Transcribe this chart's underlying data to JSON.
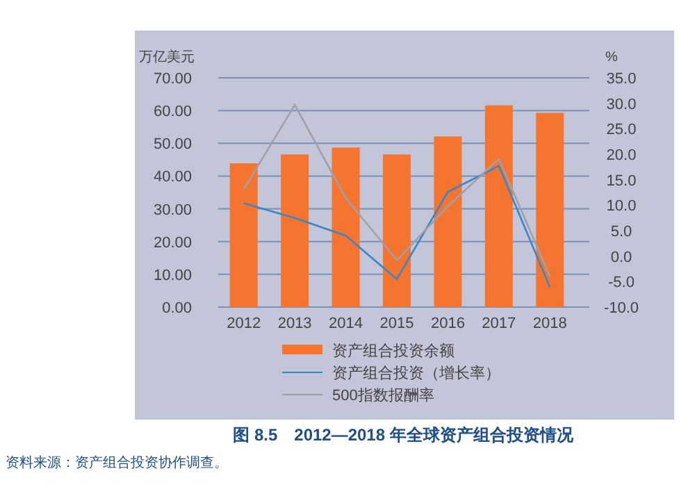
{
  "chart_data": {
    "type": "bar",
    "title": "图 8.5　2012—2018 年全球资产组合投资情况",
    "ylabel": "万亿美元",
    "y2label": "%",
    "annotations": [
      "资料来源：资产组合投资协作调查。"
    ],
    "categories": [
      "2012",
      "2013",
      "2014",
      "2015",
      "2016",
      "2017",
      "2018"
    ],
    "series": [
      {
        "name": "资产组合投资余额",
        "color": "#f47430",
        "values": [
          43.9,
          46.6,
          48.7,
          46.6,
          52.1,
          61.6,
          59.3
        ]
      },
      {
        "name": "资产组合投资（增长率）",
        "type": "line",
        "axis": "y2",
        "color": "#3b86c4",
        "values": [
          10.4,
          7.5,
          4,
          -4.5,
          12.6,
          17.7,
          -6.1
        ]
      },
      {
        "name": "500指数报酬率",
        "type": "line",
        "axis": "y2",
        "color": "#a0a0a8",
        "values": [
          13.1,
          29.7,
          11.4,
          -0.8,
          9.8,
          19.1,
          -4
        ]
      }
    ],
    "ylim": [
      0,
      70
    ],
    "yticks": [
      {
        "value": 0,
        "label": "0.00"
      },
      {
        "value": 10,
        "label": "10.00"
      },
      {
        "value": 20,
        "label": "20.00"
      },
      {
        "value": 30,
        "label": "30.00"
      },
      {
        "value": 40,
        "label": "40.00"
      },
      {
        "value": 50,
        "label": "50.00"
      },
      {
        "value": 60,
        "label": "60.00"
      },
      {
        "value": 70,
        "label": "70.00"
      }
    ],
    "y2lim": [
      -10,
      35
    ],
    "y2ticks": [
      {
        "value": -10,
        "label": "-10.0"
      },
      {
        "value": -5,
        "label": "-5.0"
      },
      {
        "value": 0,
        "label": "0.0"
      },
      {
        "value": 5,
        "label": "5.0"
      },
      {
        "value": 10,
        "label": "10.0"
      },
      {
        "value": 15,
        "label": "15.0"
      },
      {
        "value": 20,
        "label": "20.0"
      },
      {
        "value": 25,
        "label": "25.0"
      },
      {
        "value": 30,
        "label": "30.0"
      },
      {
        "value": 35,
        "label": "35.0"
      }
    ],
    "grid": "y",
    "legend": "bottom"
  }
}
